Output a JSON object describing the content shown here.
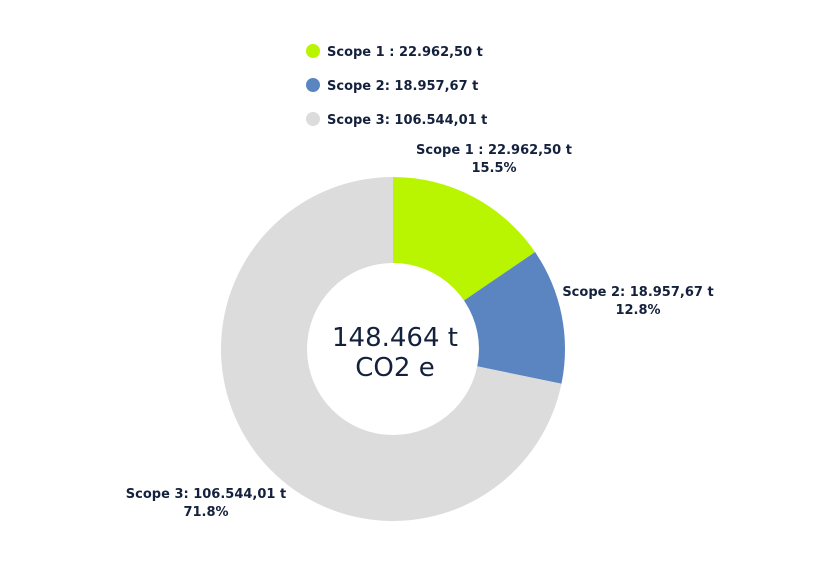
{
  "chart_data": {
    "type": "pie",
    "donut": true,
    "center_label": [
      "148.464 t",
      "CO2 e"
    ],
    "legend_position": "top",
    "series": [
      {
        "name": "Scope 1 : 22.962,50 t",
        "value": 22962.5,
        "percent_label": "15.5%",
        "color": "#b9f500"
      },
      {
        "name": "Scope 2: 18.957,67 t",
        "value": 18957.67,
        "percent_label": "12.8%",
        "color": "#5b85c1"
      },
      {
        "name": "Scope 3: 106.544,01 t",
        "value": 106544.01,
        "percent_label": "71.8%",
        "color": "#dcdcdc"
      }
    ]
  }
}
